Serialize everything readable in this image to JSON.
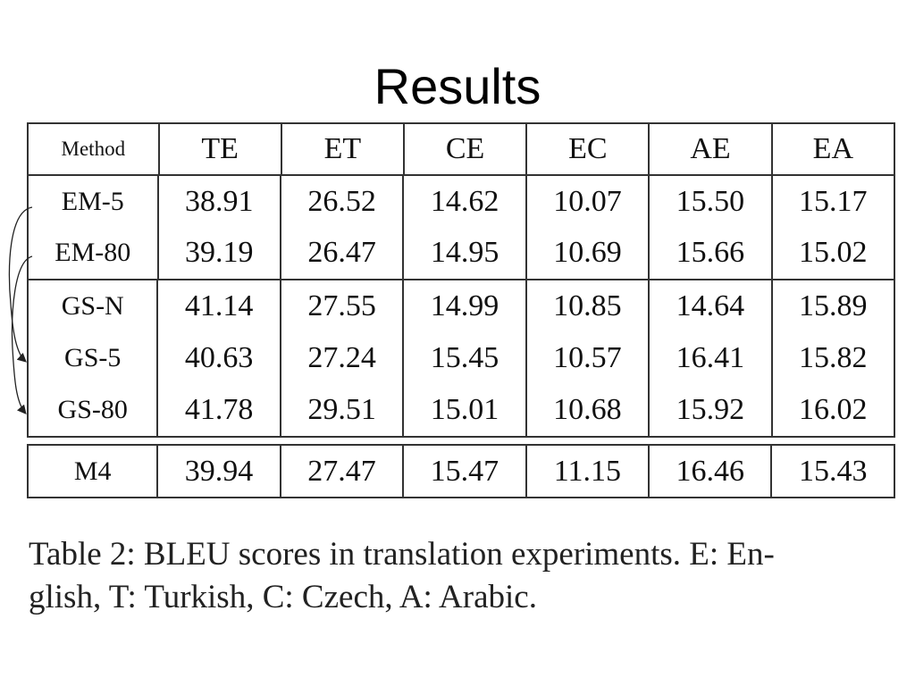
{
  "slide": {
    "title": "Results"
  },
  "table": {
    "headers": [
      "Method",
      "TE",
      "ET",
      "CE",
      "EC",
      "AE",
      "EA"
    ],
    "groups": [
      {
        "rows": [
          {
            "method": "EM-5",
            "values": [
              "38.91",
              "26.52",
              "14.62",
              "10.07",
              "15.50",
              "15.17"
            ],
            "bold": []
          },
          {
            "method": "EM-80",
            "values": [
              "39.19",
              "26.47",
              "14.95",
              "10.69",
              "15.66",
              "15.02"
            ],
            "bold": []
          }
        ]
      },
      {
        "rows": [
          {
            "method": "GS-N",
            "values": [
              "41.14",
              "27.55",
              "14.99",
              "10.85",
              "14.64",
              "15.89"
            ],
            "bold": [
              3
            ]
          },
          {
            "method": "GS-5",
            "values": [
              "40.63",
              "27.24",
              "15.45",
              "10.57",
              "16.41",
              "15.82"
            ],
            "bold": [
              2,
              4
            ]
          },
          {
            "method": "GS-80",
            "values": [
              "41.78",
              "29.51",
              "15.01",
              "10.68",
              "15.92",
              "16.02"
            ],
            "bold": [
              0,
              1,
              5
            ]
          }
        ]
      },
      {
        "rows": [
          {
            "method": "M4",
            "values": [
              "39.94",
              "27.47",
              "15.47",
              "11.15",
              "16.46",
              "15.43"
            ],
            "bold": []
          }
        ]
      }
    ]
  },
  "caption": {
    "line1": "Table 2: BLEU scores in translation experiments. E: En-",
    "line2": "glish, T: Turkish, C: Czech, A: Arabic."
  }
}
